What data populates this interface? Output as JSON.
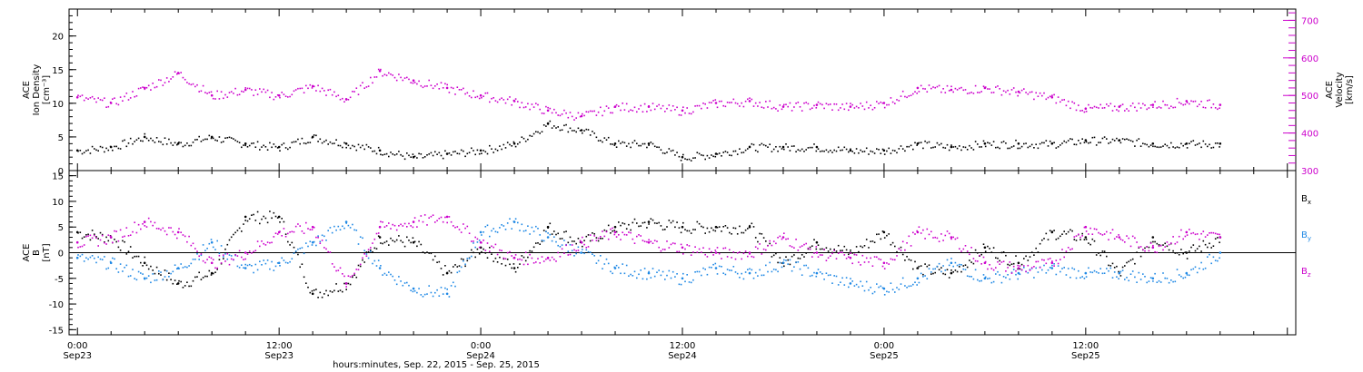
{
  "colors": {
    "black": "#000000",
    "magenta": "#cc00cc",
    "blue": "#1e88e5"
  },
  "chart_data": [
    {
      "type": "scatter",
      "panel": "top",
      "ylabel_lines": [
        "ACE",
        "Ion Density",
        "[cm⁻³]"
      ],
      "ylim": [
        0,
        24
      ],
      "yticks": [
        0,
        5,
        10,
        15,
        20
      ],
      "ylabel_right_lines": [
        "ACE",
        "Velocity",
        "[km/s]"
      ],
      "ylim_right": [
        300,
        730
      ],
      "yticks_right": [
        300,
        400,
        500,
        600,
        700
      ],
      "series": [
        {
          "name": "Ion Density",
          "color": "#000000",
          "axis": "left",
          "x_hours": [
            0,
            2,
            4,
            6,
            8,
            10,
            12,
            14,
            16,
            18,
            20,
            22,
            24,
            26,
            28,
            30,
            32,
            34,
            36,
            38,
            40,
            42,
            44,
            46,
            48,
            50,
            52,
            54,
            56,
            58,
            60,
            62,
            64,
            66,
            68
          ],
          "values": [
            3,
            3.5,
            5,
            4,
            5,
            4,
            3.5,
            5,
            4,
            3,
            2,
            2.5,
            3,
            4,
            7,
            6,
            4,
            4,
            2,
            2.5,
            3.5,
            3.5,
            3.5,
            3,
            3,
            4,
            3.5,
            4,
            4,
            4,
            4.5,
            4.5,
            4,
            4,
            4
          ]
        },
        {
          "name": "Velocity",
          "color": "#cc00cc",
          "axis": "right",
          "x_hours": [
            0,
            2,
            4,
            6,
            8,
            10,
            12,
            14,
            16,
            18,
            20,
            22,
            24,
            26,
            28,
            30,
            32,
            34,
            36,
            38,
            40,
            42,
            44,
            46,
            48,
            50,
            52,
            54,
            56,
            58,
            60,
            62,
            64,
            66,
            68
          ],
          "values": [
            495,
            480,
            520,
            560,
            500,
            515,
            500,
            525,
            490,
            565,
            540,
            520,
            500,
            485,
            460,
            445,
            470,
            470,
            460,
            480,
            485,
            470,
            475,
            470,
            480,
            520,
            515,
            520,
            510,
            495,
            465,
            470,
            475,
            485,
            475
          ]
        }
      ]
    },
    {
      "type": "scatter",
      "panel": "bottom",
      "ylabel_lines": [
        "ACE",
        "B",
        "[nT]"
      ],
      "ylim": [
        -16,
        16
      ],
      "yticks": [
        -15,
        -10,
        -5,
        0,
        5,
        10,
        15
      ],
      "series": [
        {
          "name": "Bx",
          "color": "#000000",
          "x_hours": [
            0,
            2,
            4,
            6,
            8,
            10,
            12,
            14,
            16,
            18,
            20,
            22,
            24,
            26,
            28,
            30,
            32,
            34,
            36,
            38,
            40,
            42,
            44,
            46,
            48,
            50,
            52,
            54,
            56,
            58,
            60,
            62,
            64,
            66,
            68
          ],
          "values": [
            4,
            3,
            -2,
            -6,
            -4,
            7,
            7,
            -8,
            -6,
            3,
            2,
            -4,
            1,
            -3,
            5,
            2,
            5,
            6,
            5,
            5,
            5,
            -2,
            2,
            0,
            4,
            -3,
            -4,
            1,
            -2,
            4,
            3,
            -4,
            3,
            0,
            3
          ]
        },
        {
          "name": "By",
          "color": "#1e88e5",
          "x_hours": [
            0,
            2,
            4,
            6,
            8,
            10,
            12,
            14,
            16,
            18,
            20,
            22,
            24,
            26,
            28,
            30,
            32,
            34,
            36,
            38,
            40,
            42,
            44,
            46,
            48,
            50,
            52,
            54,
            56,
            58,
            60,
            62,
            64,
            66,
            68
          ],
          "values": [
            -1,
            -2,
            -5,
            -3,
            2,
            -3,
            -2,
            2,
            6,
            -3,
            -7,
            -8,
            4,
            6,
            3,
            0,
            -3,
            -4,
            -5,
            -3,
            -4,
            -2,
            -4,
            -6,
            -7,
            -5,
            -2,
            -5,
            -4,
            -3,
            -4,
            -4,
            -5,
            -4,
            0
          ]
        },
        {
          "name": "Bz",
          "color": "#cc00cc",
          "x_hours": [
            0,
            2,
            4,
            6,
            8,
            10,
            12,
            14,
            16,
            18,
            20,
            22,
            24,
            26,
            28,
            30,
            32,
            34,
            36,
            38,
            40,
            42,
            44,
            46,
            48,
            50,
            52,
            54,
            56,
            58,
            60,
            62,
            64,
            66,
            68
          ],
          "values": [
            2,
            3,
            6,
            4,
            -2,
            0,
            4,
            5,
            -6,
            5,
            6,
            7,
            2,
            -1,
            -1,
            2,
            4,
            2,
            1,
            0,
            0,
            3,
            0,
            -1,
            -2,
            4,
            3,
            -2,
            -3,
            -2,
            5,
            3,
            1,
            4,
            3
          ]
        }
      ]
    }
  ],
  "legend": [
    {
      "main": "B",
      "sub": "x",
      "color": "#000000"
    },
    {
      "main": "B",
      "sub": "y",
      "color": "#1e88e5"
    },
    {
      "main": "B",
      "sub": "z",
      "color": "#cc00cc"
    }
  ],
  "x_axis": {
    "xlim_hours": [
      -0.5,
      72.5
    ],
    "tick_hours": [
      0,
      12,
      24,
      36,
      48,
      60
    ],
    "tick_labels": [
      {
        "time": "0:00",
        "date": "Sep23"
      },
      {
        "time": "12:00",
        "date": "Sep23"
      },
      {
        "time": "0:00",
        "date": "Sep24"
      },
      {
        "time": "12:00",
        "date": "Sep24"
      },
      {
        "time": "0:00",
        "date": "Sep25"
      },
      {
        "time": "12:00",
        "date": "Sep25"
      }
    ],
    "title": "hours:minutes, Sep. 22, 2015 - Sep. 25, 2015"
  }
}
